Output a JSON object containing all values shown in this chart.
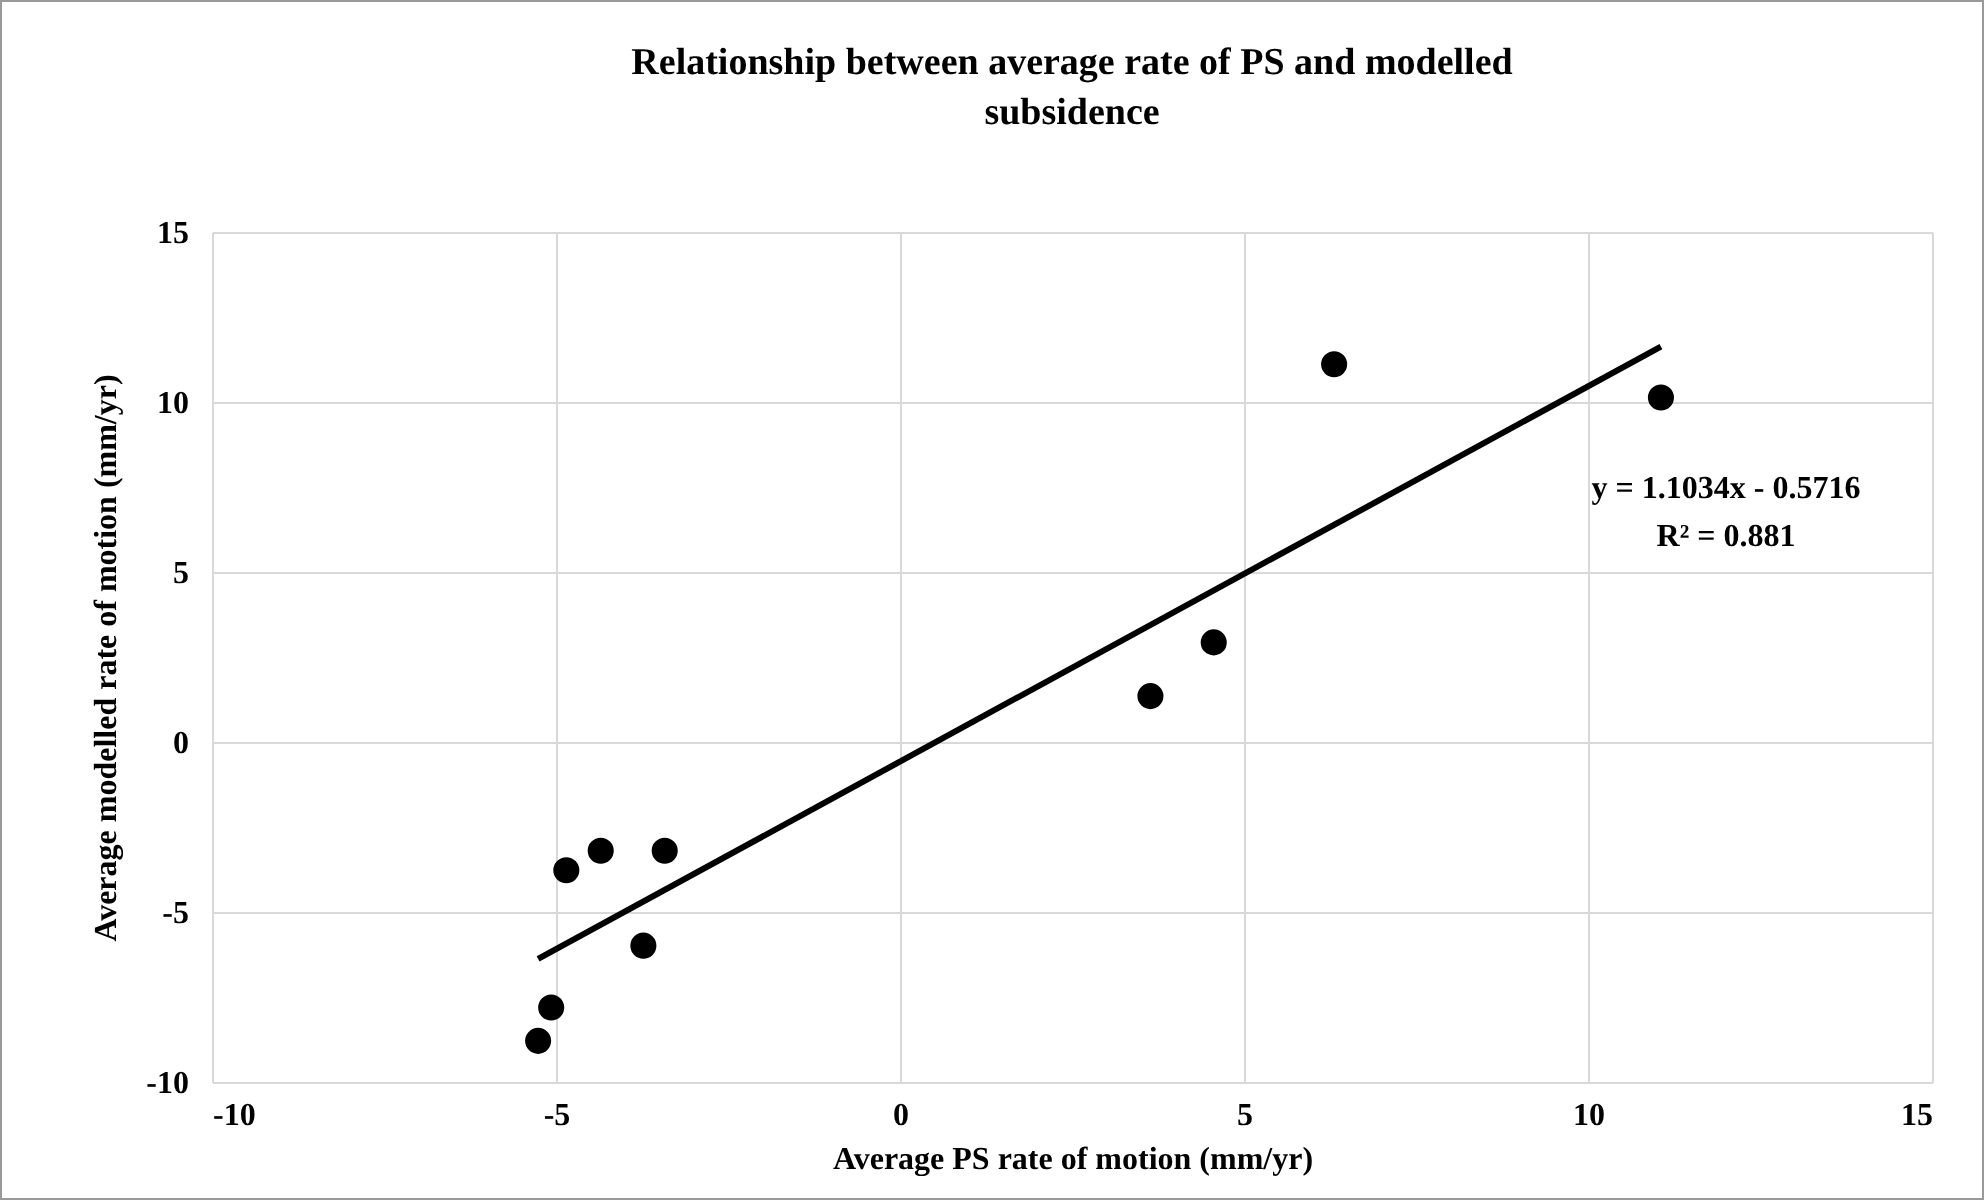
{
  "chart_data": {
    "type": "scatter",
    "title": "Relationship between average rate of PS and modelled subsidence",
    "xlabel": "Average PS rate of motion (mm/yr)",
    "ylabel": "Average modelled rate of motion (mm/yr)",
    "annotations": [
      "y = 1.1034x - 0.5716",
      "R² = 0.881"
    ],
    "x": [
      -5.26,
      -5.07,
      -4.85,
      -4.35,
      -3.73,
      -3.42,
      3.64,
      4.56,
      6.31,
      11.06
    ],
    "series": [
      {
        "color": "#000000",
        "values": [
          -8.79,
          -7.81,
          -3.77,
          -3.2,
          -5.99,
          -3.2,
          1.35,
          2.93,
          11.11,
          10.13
        ]
      },
      {
        "type": "line",
        "marker": "none",
        "color": "#000000",
        "x": [
          -5.26,
          11.06
        ],
        "values": [
          -6.38,
          11.63
        ]
      }
    ],
    "xlim": [
      -10,
      15
    ],
    "xticks": [
      -10,
      -5,
      0,
      5,
      10,
      15
    ],
    "ylim": [
      -10,
      15
    ],
    "yticks": [
      -10,
      -5,
      0,
      5,
      10,
      15
    ],
    "grid": true,
    "marker": "circle"
  }
}
